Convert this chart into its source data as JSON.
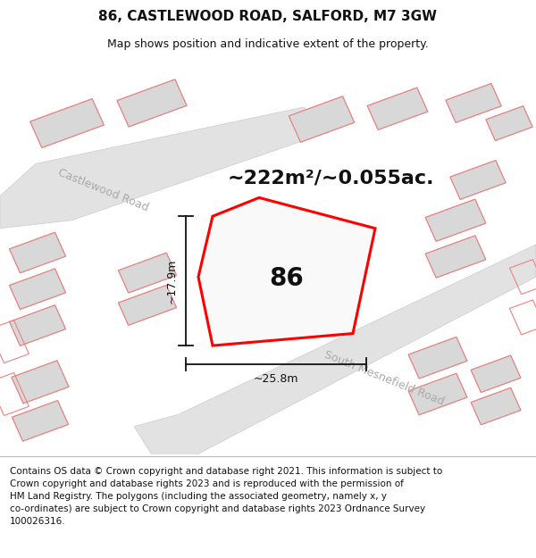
{
  "title": "86, CASTLEWOOD ROAD, SALFORD, M7 3GW",
  "subtitle": "Map shows position and indicative extent of the property.",
  "footer": "Contains OS data © Crown copyright and database right 2021. This information is subject to\nCrown copyright and database rights 2023 and is reproduced with the permission of\nHM Land Registry. The polygons (including the associated geometry, namely x, y\nco-ordinates) are subject to Crown copyright and database rights 2023 Ordnance Survey\n100026316.",
  "area_text": "~222m²/~0.055ac.",
  "label_86": "86",
  "dim_height": "~17.9m",
  "dim_width": "~25.8m",
  "road_castlewood": "Castlewood Road",
  "road_south": "South Mesnefield Road",
  "bg_color": "#ffffff",
  "highlight_stroke": "#ff0000",
  "pink_stroke": "#f08080",
  "gray_fill": "#d8d8d8",
  "gray_stroke": "#c0c0c0",
  "road_fill": "#e2e2e2",
  "dim_color": "#111111",
  "title_fontsize": 11,
  "subtitle_fontsize": 9,
  "footer_fontsize": 7.5,
  "area_fontsize": 16,
  "label_fontsize": 20,
  "road_label_fontsize": 9,
  "dim_fontsize": 9
}
